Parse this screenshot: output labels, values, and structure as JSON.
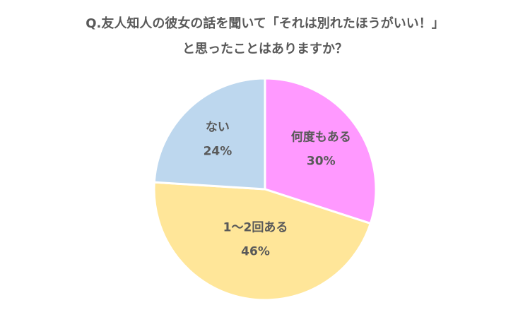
{
  "chart_data": {
    "type": "pie",
    "title": [
      "Q.友人知人の彼女の話を聞いて「それは別れたほうがいい！」",
      "と思ったことはありますか？"
    ],
    "categories": [
      "何度もある",
      "1〜2回ある",
      "ない"
    ],
    "values": [
      30,
      46,
      24
    ],
    "value_labels": [
      "30%",
      "46%",
      "24%"
    ],
    "colors": [
      "#ff99ff",
      "#ffe699",
      "#bdd7ee"
    ]
  }
}
